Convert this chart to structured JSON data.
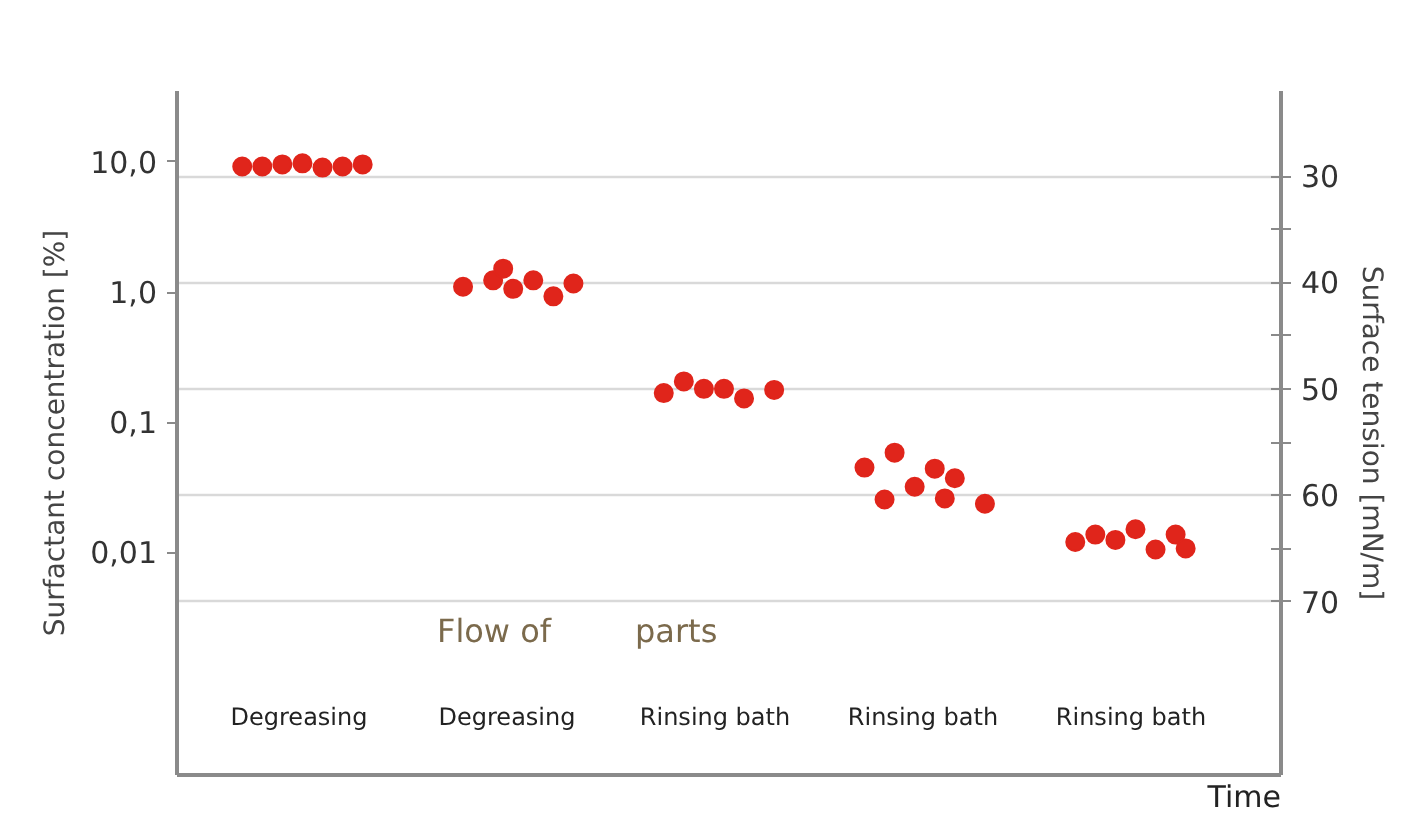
{
  "chart_data": {
    "type": "scatter",
    "xlabel": "Time",
    "ylabel": "Surfactant concentration [%]",
    "y2label": "Surface tension [mN/m]",
    "categories": [
      null,
      null,
      null,
      null,
      null,
      null,
      null,
      null,
      null,
      null,
      null,
      null,
      null,
      null,
      null,
      null,
      null,
      null,
      null,
      null,
      null,
      null,
      null,
      null,
      null,
      null,
      null,
      null,
      null,
      null,
      null,
      null,
      null,
      null,
      null,
      null,
      null,
      null,
      null,
      null,
      null,
      null,
      null,
      null,
      null,
      null,
      null,
      null,
      null,
      null,
      null,
      null,
      null,
      null,
      null,
      null,
      null,
      null,
      null,
      null,
      null,
      null,
      null,
      null,
      null,
      null,
      null,
      null,
      null,
      null,
      null,
      null,
      null,
      null,
      null,
      null,
      null,
      null,
      null,
      null,
      null,
      null,
      null,
      null,
      null,
      null,
      null,
      null,
      null,
      null,
      null,
      null,
      null,
      null,
      null,
      null,
      null,
      null,
      null,
      null,
      null,
      null,
      null,
      null,
      null,
      null,
      null,
      null,
      null,
      null
    ],
    "ylim": [
      0.000195,
      35
    ],
    "log": "y",
    "yticks": [
      {
        "value": 10,
        "label": "10,0"
      },
      {
        "value": 1,
        "label": "1,0"
      },
      {
        "value": 0.1,
        "label": "0,1"
      },
      {
        "value": 0.01,
        "label": "0,01"
      }
    ],
    "y2lim": [
      86.3,
      22
    ],
    "y2ticks": [
      30,
      {
        "value": 35,
        "label": null
      },
      40,
      {
        "value": 45,
        "label": null
      },
      50,
      {
        "value": 55,
        "label": null
      },
      60,
      {
        "value": 65,
        "label": null
      },
      70
    ],
    "grid": true,
    "tick_labels": "y",
    "marker": "circle",
    "series": [
      {
        "color": "#e0251b",
        "axis": "y2",
        "values": [
          null,
          null,
          null,
          null,
          null,
          null,
          29.1,
          null,
          29.1,
          null,
          28.9,
          null,
          28.8,
          null,
          29.2,
          null,
          29.1,
          null,
          28.9,
          null,
          null,
          null,
          null,
          null,
          null,
          null,
          null,
          null,
          40.4,
          null,
          null,
          39.8,
          38.7,
          40.6,
          null,
          39.8,
          null,
          41.3,
          null,
          40.1,
          null,
          null,
          null,
          null,
          null,
          null,
          null,
          null,
          50.4,
          null,
          49.3,
          null,
          50.0,
          null,
          50.0,
          null,
          50.9,
          null,
          null,
          50.1,
          null,
          null,
          null,
          null,
          null,
          null,
          null,
          null,
          57.4,
          null,
          60.4,
          56.0,
          null,
          59.2,
          null,
          57.5,
          60.3,
          58.4,
          null,
          null,
          60.8,
          null,
          null,
          null,
          null,
          null,
          null,
          null,
          null,
          64.4,
          null,
          63.7,
          null,
          64.2,
          null,
          63.2,
          null,
          65.1,
          null,
          63.7,
          65.0,
          null,
          null,
          null,
          null,
          null,
          null,
          null,
          null,
          null
        ]
      }
    ],
    "annotations": [
      "Flow of",
      "parts",
      "Degreasing",
      "Degreasing",
      "Rinsing bath",
      "Rinsing bath",
      "Rinsing bath"
    ]
  }
}
